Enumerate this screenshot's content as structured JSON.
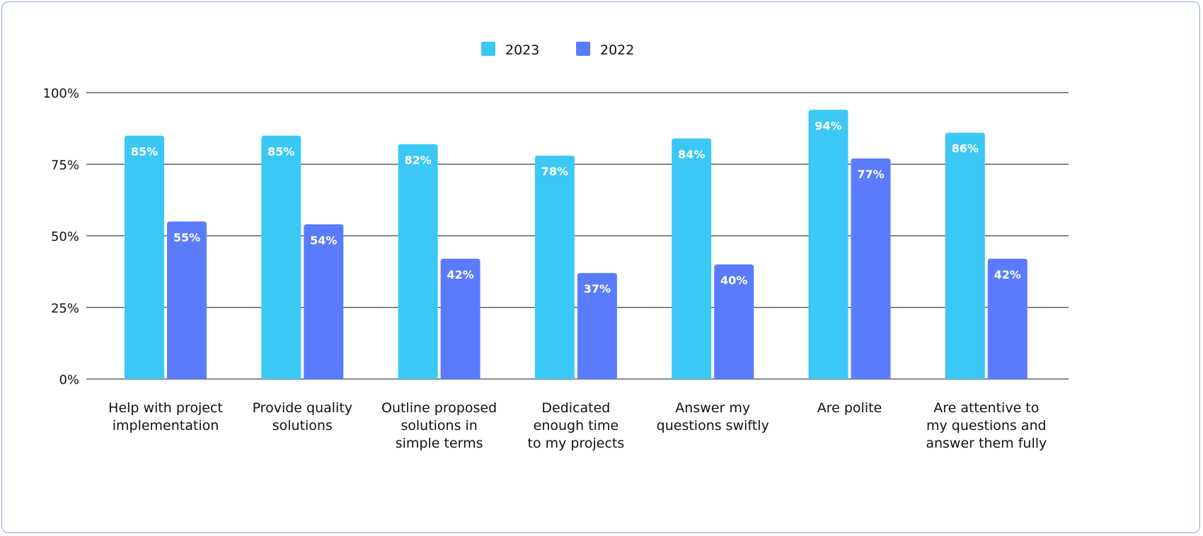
{
  "chart_data": {
    "type": "bar",
    "categories": [
      [
        "Help with project",
        "implementation"
      ],
      [
        "Provide quality",
        "solutions"
      ],
      [
        "Outline proposed",
        "solutions in",
        "simple terms"
      ],
      [
        "Dedicated",
        "enough time",
        "to my projects"
      ],
      [
        "Answer my",
        "questions swiftly"
      ],
      [
        "Are polite"
      ],
      [
        "Are attentive to",
        "my questions and",
        "answer them fully"
      ]
    ],
    "series": [
      {
        "name": "2023",
        "color": "#3bc8f5",
        "values": [
          85,
          85,
          82,
          78,
          84,
          94,
          86
        ],
        "labels": [
          "85%",
          "85%",
          "82%",
          "78%",
          "84%",
          "94%",
          "86%"
        ]
      },
      {
        "name": "2022",
        "color": "#5a7cfc",
        "values": [
          55,
          54,
          42,
          37,
          40,
          77,
          42
        ],
        "labels": [
          "55%",
          "54%",
          "42%",
          "37%",
          "40%",
          "77%",
          "42%"
        ]
      }
    ],
    "ylim": [
      0,
      100
    ],
    "yticks": [
      0,
      25,
      50,
      75,
      100
    ],
    "ytick_labels": [
      "0%",
      "25%",
      "50%",
      "75%",
      "100%"
    ],
    "grid": true,
    "legend_position": "top-center"
  }
}
